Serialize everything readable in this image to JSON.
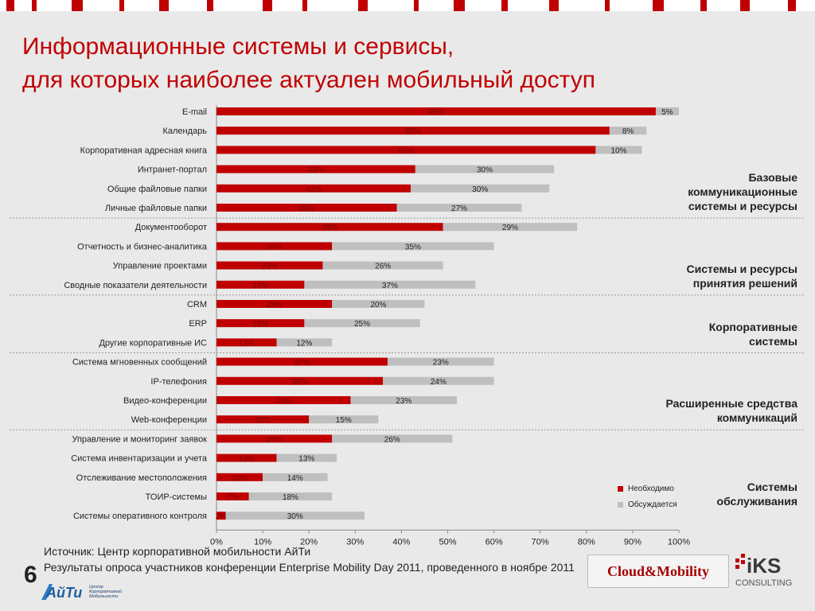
{
  "title": {
    "line1": "Информационные системы и сервисы,",
    "line2": "для которых наиболее актуален мобильный доступ"
  },
  "groups": [
    {
      "label": "Базовые коммуникационные системы и ресурсы",
      "lines": [
        "Базовые",
        "коммуникационные",
        "системы и ресурсы"
      ]
    },
    {
      "label": "Системы и ресурсы принятия решений",
      "lines": [
        "Системы и ресурсы",
        "принятия решений"
      ]
    },
    {
      "label": "Корпоративные системы",
      "lines": [
        "Корпоративные",
        "системы"
      ]
    },
    {
      "label": "Расширенные средства коммуникаций",
      "lines": [
        "Расширенные средства",
        "коммуникаций"
      ]
    },
    {
      "label": "Системы обслуживания",
      "lines": [
        "Системы",
        "обслуживания"
      ]
    }
  ],
  "legend": {
    "necessary": "Необходимо",
    "discussed": "Обсуждается"
  },
  "colors": {
    "necessary": "#c00000",
    "discussed": "#bfbfbf",
    "title": "#c00000"
  },
  "source": {
    "line1": "Источник: Центр корпоративной мобильности АйТи",
    "line2": "Результаты опроса участников конференции Enterprise Mobility Day 2011, проведенного в ноябре 2011"
  },
  "page_number": "6",
  "logos": {
    "aiti": "АйТи",
    "aiti_sub": [
      "Центр",
      "Корпоративной",
      "Мобильности"
    ],
    "cloud_mobility": "Cloud&Mobility",
    "iks": "iKS",
    "iks_sub": "CONSULTING"
  },
  "chart_data": {
    "type": "bar",
    "orientation": "horizontal",
    "stacked": true,
    "categories": [
      "E-mail",
      "Календарь",
      "Корпоративная адресная книга",
      "Интранет-портал",
      "Общие файловые папки",
      "Личные файловые папки",
      "Документооборот",
      "Отчетность и бизнес-аналитика",
      "Управление проектами",
      "Сводные показатели деятельности",
      "CRM",
      "ERP",
      "Другие корпоративные ИС",
      "Система мгновенных сообщений",
      "IP-телефония",
      "Видео-конференции",
      "Web-конференции",
      "Управление и мониторинг заявок",
      "Система инвентаризации и учета",
      "Отслеживание местоположения",
      "ТОИР-системы",
      "Системы оперативного контроля"
    ],
    "series": [
      {
        "name": "Необходимо",
        "values": [
          95,
          85,
          82,
          43,
          42,
          39,
          49,
          25,
          23,
          19,
          25,
          19,
          13,
          37,
          36,
          29,
          20,
          25,
          13,
          10,
          7,
          2
        ]
      },
      {
        "name": "Обсуждается",
        "values": [
          5,
          8,
          10,
          30,
          30,
          27,
          29,
          35,
          26,
          37,
          20,
          25,
          12,
          23,
          24,
          23,
          15,
          26,
          13,
          14,
          18,
          30
        ]
      }
    ],
    "xlim": [
      0,
      100
    ],
    "xticks": [
      "0%",
      "10%",
      "20%",
      "30%",
      "40%",
      "50%",
      "60%",
      "70%",
      "80%",
      "90%",
      "100%"
    ],
    "value_suffix": "%",
    "group_break_after": [
      5,
      9,
      12,
      16
    ],
    "legend_position": "right"
  }
}
